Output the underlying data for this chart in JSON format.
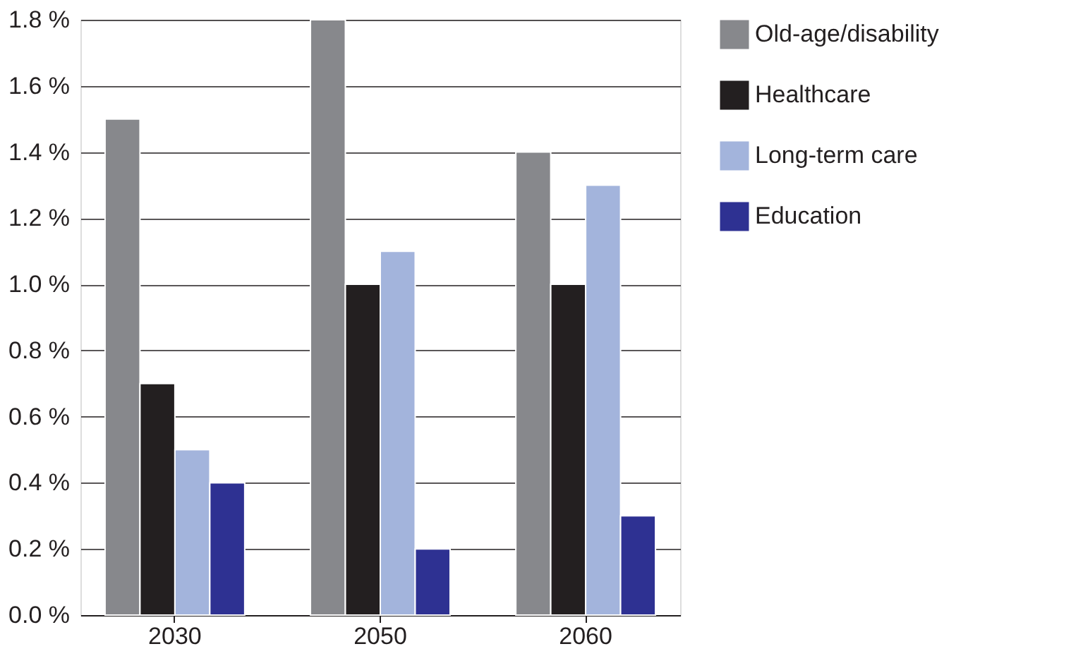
{
  "chart_data": {
    "type": "bar",
    "categories": [
      "2030",
      "2050",
      "2060"
    ],
    "series": [
      {
        "name": "Old-age/disability",
        "color": "#87888c",
        "values": [
          1.5,
          1.8,
          1.4
        ]
      },
      {
        "name": "Healthcare",
        "color": "#231f20",
        "values": [
          0.7,
          1.0,
          1.0
        ]
      },
      {
        "name": "Long-term care",
        "color": "#a3b4dc",
        "values": [
          0.5,
          1.1,
          1.3
        ]
      },
      {
        "name": "Education",
        "color": "#2e3192",
        "values": [
          0.4,
          0.2,
          0.3
        ]
      }
    ],
    "ylim": [
      0,
      1.8
    ],
    "yticks": [
      {
        "value": 0,
        "label": "0.0 %"
      },
      {
        "value": 0.2,
        "label": "0.2 %"
      },
      {
        "value": 0.4,
        "label": "0.4 %"
      },
      {
        "value": 0.6,
        "label": "0.6 %"
      },
      {
        "value": 0.8,
        "label": "0.8 %"
      },
      {
        "value": 1.0,
        "label": "1.0 %"
      },
      {
        "value": 1.2,
        "label": "1.2 %"
      },
      {
        "value": 1.4,
        "label": "1.4 %"
      },
      {
        "value": 1.6,
        "label": "1.6 %"
      },
      {
        "value": 1.8,
        "label": "1.8 %"
      }
    ],
    "grid": "y",
    "legend": "top right"
  }
}
